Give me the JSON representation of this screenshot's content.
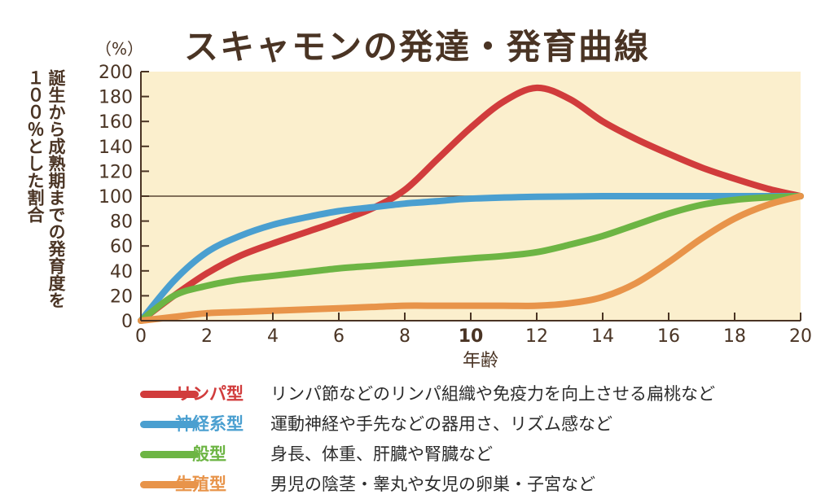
{
  "title": "スキャモンの発達・発育曲線",
  "chart_data": {
    "type": "line",
    "ylabel": "誕生から成熟期までの発育度を\n１００％とした割合",
    "yunit": "（%）",
    "xlabel": "年齢",
    "xlim": [
      0,
      20
    ],
    "ylim": [
      0,
      200
    ],
    "xticks": [
      0,
      2,
      4,
      6,
      8,
      10,
      12,
      14,
      16,
      18,
      20
    ],
    "yticks": [
      0,
      20,
      40,
      60,
      80,
      100,
      120,
      140,
      160,
      180,
      200
    ],
    "reference_line": 100,
    "background_color": "#fbefcd",
    "series": [
      {
        "name": "リンパ型",
        "color": "#d13c3c",
        "x": [
          0,
          1,
          2,
          3,
          4,
          5,
          6,
          7,
          8,
          9,
          10,
          11,
          12,
          13,
          14,
          15,
          16,
          17,
          18,
          19,
          20
        ],
        "y": [
          0,
          20,
          38,
          52,
          62,
          71,
          80,
          90,
          105,
          130,
          155,
          176,
          187,
          178,
          160,
          146,
          134,
          123,
          114,
          106,
          100
        ]
      },
      {
        "name": "神経系型",
        "color": "#4a9fd0",
        "x": [
          0,
          1,
          2,
          3,
          4,
          5,
          6,
          7,
          8,
          9,
          10,
          12,
          14,
          16,
          18,
          20
        ],
        "y": [
          0,
          32,
          55,
          68,
          77,
          83,
          88,
          91,
          94,
          96,
          98,
          99.5,
          100,
          100,
          100,
          100
        ]
      },
      {
        "name": "一般型",
        "color": "#6db544",
        "x": [
          0,
          1,
          2,
          3,
          4,
          5,
          6,
          7,
          8,
          9,
          10,
          11,
          12,
          13,
          14,
          15,
          16,
          17,
          18,
          19,
          20
        ],
        "y": [
          0,
          20,
          28,
          33,
          36,
          39,
          42,
          44,
          46,
          48,
          50,
          52,
          55,
          61,
          68,
          77,
          86,
          93,
          97,
          99,
          100
        ]
      },
      {
        "name": "生殖型",
        "color": "#e8944a",
        "x": [
          0,
          1,
          2,
          3,
          4,
          5,
          6,
          7,
          8,
          9,
          10,
          11,
          12,
          13,
          14,
          15,
          16,
          17,
          18,
          19,
          20
        ],
        "y": [
          0,
          3,
          6,
          7,
          8,
          9,
          10,
          11,
          12,
          12,
          12,
          12,
          12,
          14,
          19,
          30,
          47,
          66,
          82,
          93,
          100
        ]
      }
    ]
  },
  "legend": [
    {
      "name": "リンパ型",
      "color": "#d13c3c",
      "desc": "リンパ節などのリンパ組織や免疫力を向上させる扁桃など"
    },
    {
      "name": "神経系型",
      "color": "#4a9fd0",
      "desc": "運動神経や手先などの器用さ、リズム感など"
    },
    {
      "name": "一般型",
      "color": "#6db544",
      "desc": "身長、体重、肝臓や腎臓など"
    },
    {
      "name": "生殖型",
      "color": "#e8944a",
      "desc": "男児の陰茎・睾丸や女児の卵巣・子宮など"
    }
  ]
}
